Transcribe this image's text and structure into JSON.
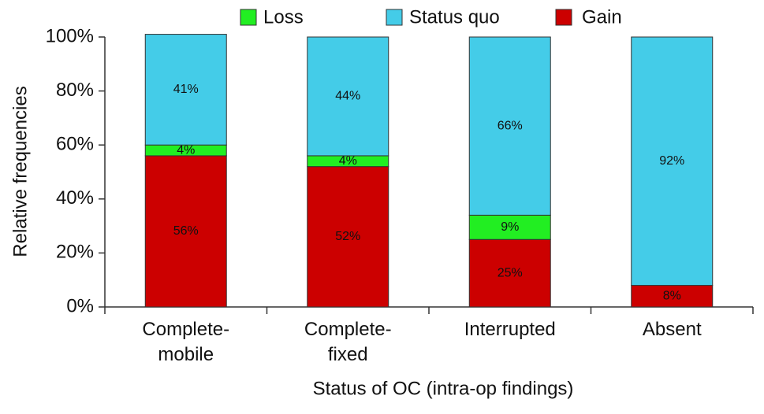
{
  "chart_data": {
    "type": "stacked_bar",
    "xlabel": "Status of OC (intra-op findings)",
    "ylabel": "Relative frequencies",
    "categories": [
      "Complete-\nmobile",
      "Complete-\nfixed",
      "Interrupted",
      "Absent"
    ],
    "series": [
      {
        "name": "Gain",
        "color": "#cc0000",
        "values": [
          56,
          52,
          25,
          8
        ],
        "value_labels": [
          "56%",
          "52%",
          "25%",
          "8%"
        ]
      },
      {
        "name": "Loss",
        "color": "#22ee22",
        "values": [
          4,
          4,
          9,
          null
        ],
        "value_labels": [
          "4%",
          "4%",
          "9%",
          null
        ]
      },
      {
        "name": "Status quo",
        "color": "#44cce8",
        "values": [
          41,
          44,
          66,
          92
        ],
        "value_labels": [
          "41%",
          "44%",
          "66%",
          "92%"
        ]
      }
    ],
    "ylim": [
      0,
      100
    ],
    "yticks": [
      {
        "value": 0,
        "label": "0%"
      },
      {
        "value": 20,
        "label": "20%"
      },
      {
        "value": 40,
        "label": "40%"
      },
      {
        "value": 60,
        "label": "60%"
      },
      {
        "value": 80,
        "label": "80%"
      },
      {
        "value": 100,
        "label": "100%"
      }
    ]
  }
}
